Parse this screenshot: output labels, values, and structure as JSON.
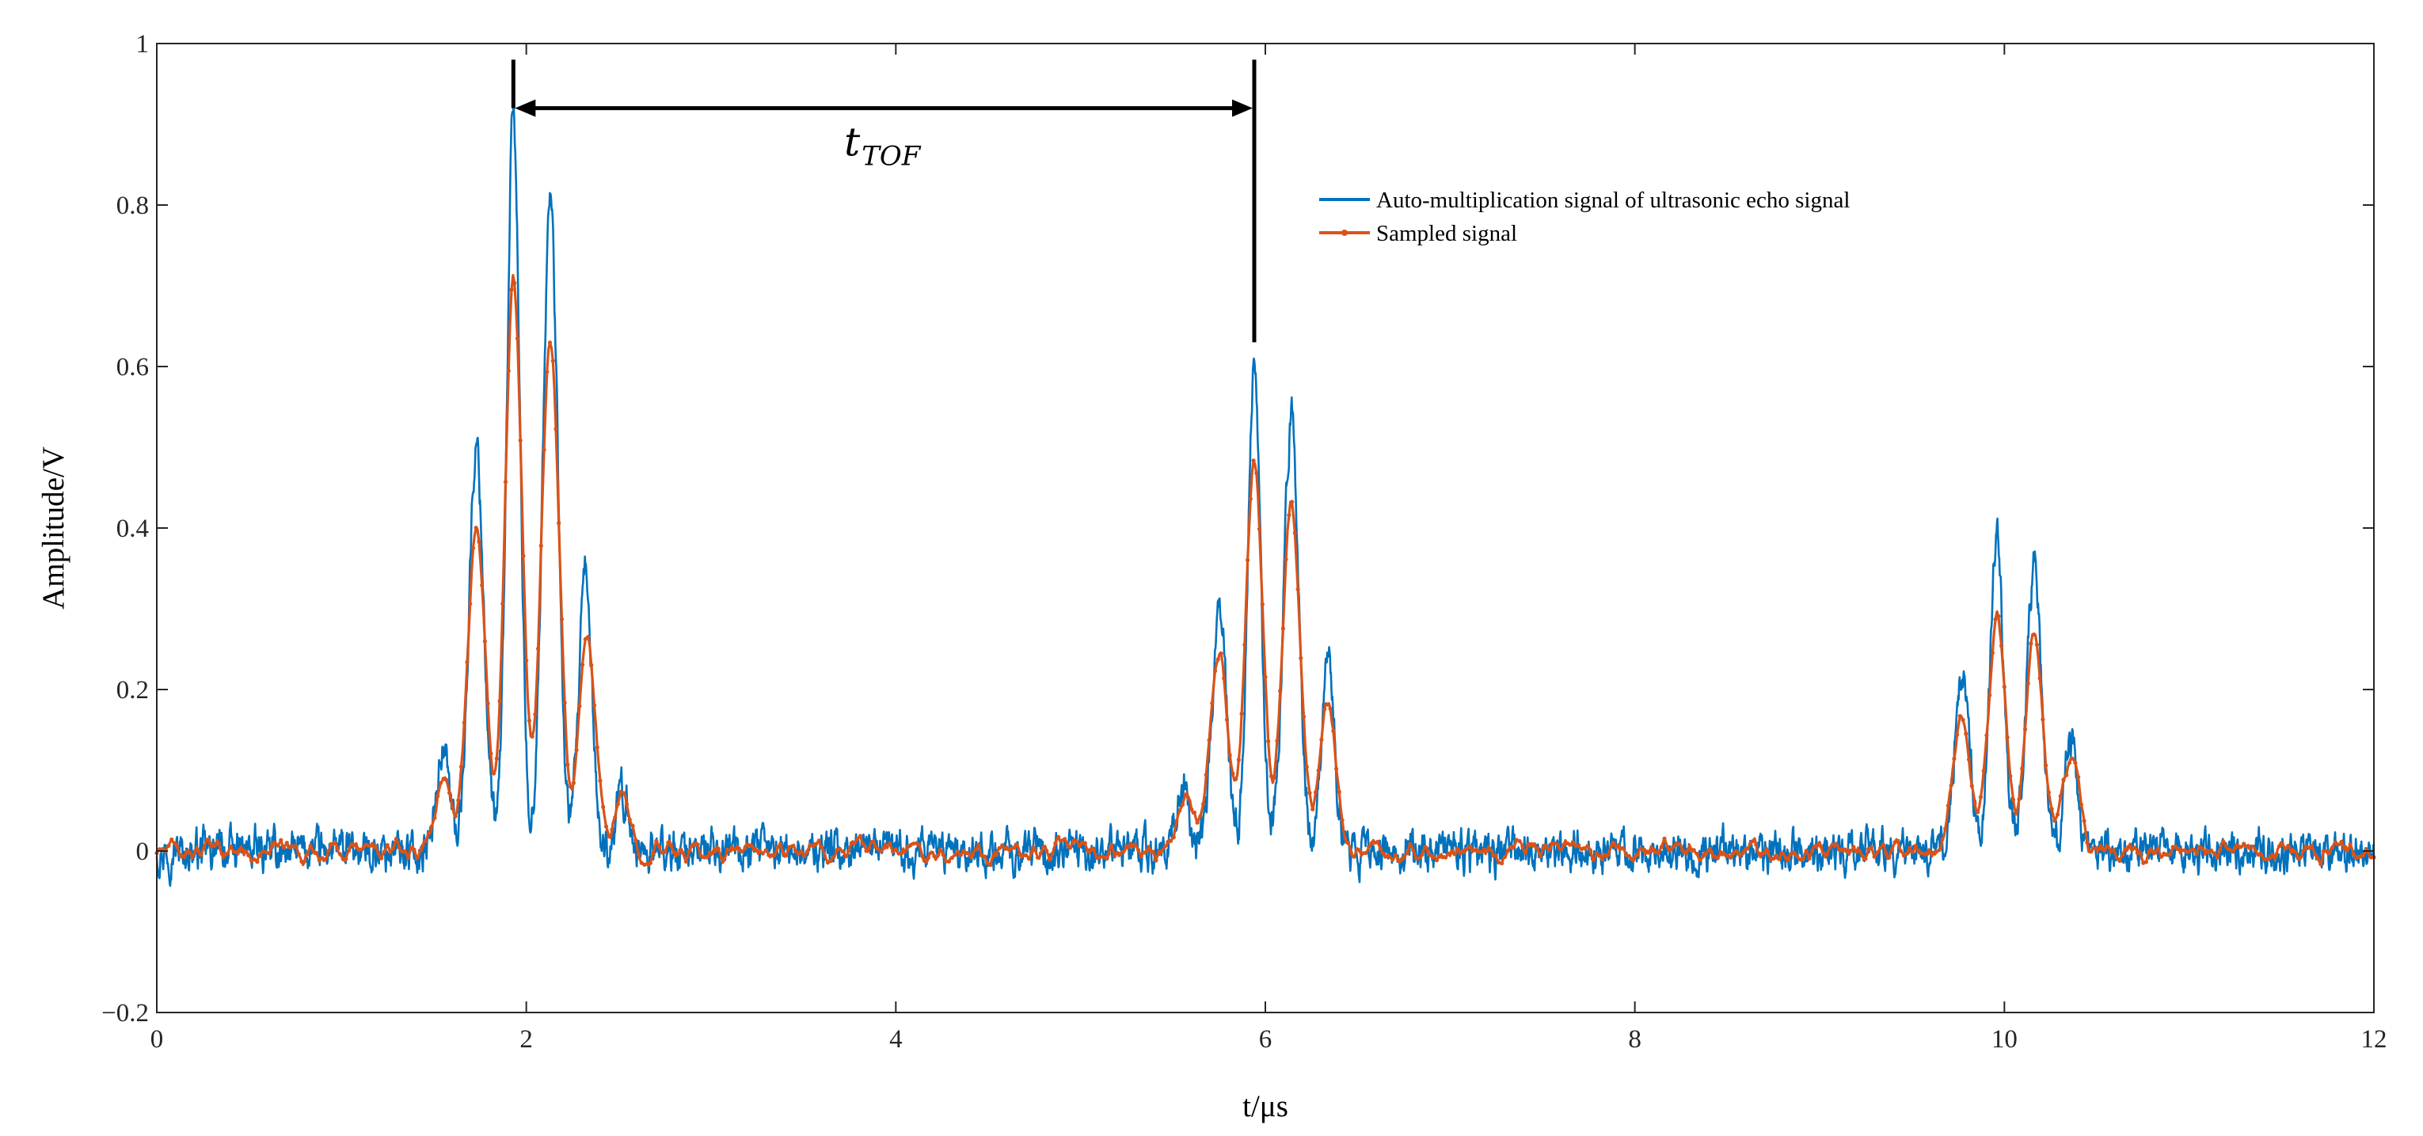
{
  "chart_data": {
    "type": "line",
    "title": "",
    "xlabel": "t/μs",
    "ylabel": "Amplitude/V",
    "xlim": [
      0,
      12
    ],
    "ylim": [
      -0.2,
      1.0
    ],
    "x_ticks": [
      0,
      2,
      4,
      6,
      8,
      10,
      12
    ],
    "x_tick_labels": [
      "0",
      "2",
      "4",
      "6",
      "8",
      "10",
      "12"
    ],
    "y_ticks": [
      -0.2,
      0,
      0.2,
      0.4,
      0.6,
      0.8,
      1.0
    ],
    "y_tick_labels": [
      "−0.2",
      "0",
      "0.2",
      "0.4",
      "0.6",
      "0.8",
      "1"
    ],
    "grid": false,
    "legend_position": "upper-center-right",
    "series": [
      {
        "name": "Auto-multiplication signal of ultrasonic echo signal",
        "color": "#0072BD",
        "marker": "none",
        "noise_amplitude": 0.022,
        "peaks": [
          {
            "t": 1.55,
            "amp": 0.13,
            "width": 0.035
          },
          {
            "t": 1.73,
            "amp": 0.5,
            "width": 0.04
          },
          {
            "t": 1.93,
            "amp": 0.91,
            "width": 0.035
          },
          {
            "t": 2.13,
            "amp": 0.81,
            "width": 0.04
          },
          {
            "t": 2.32,
            "amp": 0.34,
            "width": 0.035
          },
          {
            "t": 2.52,
            "amp": 0.07,
            "width": 0.035
          },
          {
            "t": 5.55,
            "amp": 0.08,
            "width": 0.035
          },
          {
            "t": 5.75,
            "amp": 0.3,
            "width": 0.04
          },
          {
            "t": 5.94,
            "amp": 0.6,
            "width": 0.035
          },
          {
            "t": 6.14,
            "amp": 0.54,
            "width": 0.04
          },
          {
            "t": 6.34,
            "amp": 0.24,
            "width": 0.035
          },
          {
            "t": 9.77,
            "amp": 0.22,
            "width": 0.04
          },
          {
            "t": 9.96,
            "amp": 0.39,
            "width": 0.035
          },
          {
            "t": 10.16,
            "amp": 0.36,
            "width": 0.04
          },
          {
            "t": 10.36,
            "amp": 0.14,
            "width": 0.035
          }
        ]
      },
      {
        "name": "Sampled signal",
        "color": "#D95319",
        "marker": "dot",
        "noise_amplitude": 0.013,
        "peaks": [
          {
            "t": 1.55,
            "amp": 0.09,
            "width": 0.045
          },
          {
            "t": 1.73,
            "amp": 0.4,
            "width": 0.048
          },
          {
            "t": 1.93,
            "amp": 0.72,
            "width": 0.045
          },
          {
            "t": 2.13,
            "amp": 0.64,
            "width": 0.048
          },
          {
            "t": 2.33,
            "amp": 0.26,
            "width": 0.045
          },
          {
            "t": 2.52,
            "amp": 0.06,
            "width": 0.045
          },
          {
            "t": 5.57,
            "amp": 0.06,
            "width": 0.045
          },
          {
            "t": 5.75,
            "amp": 0.24,
            "width": 0.048
          },
          {
            "t": 5.94,
            "amp": 0.48,
            "width": 0.045
          },
          {
            "t": 6.14,
            "amp": 0.43,
            "width": 0.048
          },
          {
            "t": 6.34,
            "amp": 0.18,
            "width": 0.045
          },
          {
            "t": 9.77,
            "amp": 0.17,
            "width": 0.048
          },
          {
            "t": 9.96,
            "amp": 0.29,
            "width": 0.045
          },
          {
            "t": 10.16,
            "amp": 0.27,
            "width": 0.048
          },
          {
            "t": 10.36,
            "amp": 0.11,
            "width": 0.045
          }
        ]
      }
    ],
    "annotations": [
      {
        "type": "double-arrow",
        "label_main": "t",
        "label_sub": "TOF",
        "x_start": 1.93,
        "x_end": 5.94,
        "y": 0.92,
        "left_marker_y": [
          0.92,
          0.98
        ],
        "right_marker_y": [
          0.63,
          0.98
        ]
      }
    ]
  }
}
